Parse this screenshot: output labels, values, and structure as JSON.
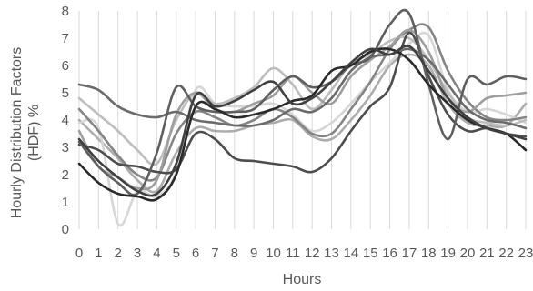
{
  "chart_data": {
    "type": "line",
    "xlabel": "Hours",
    "ylabel": "Hourly Distribution Factors (HDF) %",
    "ylabel_lines": [
      "Hourly Distribution Factors",
      "(HDF) %"
    ],
    "x": [
      0,
      1,
      2,
      3,
      4,
      5,
      6,
      7,
      8,
      9,
      10,
      11,
      12,
      13,
      14,
      15,
      16,
      17,
      18,
      19,
      20,
      21,
      22,
      23
    ],
    "x_tick_labels": [
      "0",
      "1",
      "2",
      "3",
      "4",
      "5",
      "6",
      "7",
      "8",
      "9",
      "10",
      "11",
      "12",
      "13",
      "14",
      "15",
      "16",
      "17",
      "18",
      "19",
      "20",
      "21",
      "22",
      "23"
    ],
    "ylim": [
      0,
      8
    ],
    "y_ticks": [
      0,
      1,
      2,
      3,
      4,
      5,
      6,
      7,
      8
    ],
    "grid": "vertical",
    "legend": "none",
    "series": [
      {
        "color": "#404040",
        "values": [
          3.3,
          2.5,
          1.9,
          1.4,
          1.3,
          2.4,
          4.9,
          4.5,
          4.7,
          5.1,
          5.4,
          4.6,
          4.8,
          5.4,
          6.1,
          6.6,
          6.4,
          6.7,
          5.8,
          4.8,
          4.1,
          3.7,
          3.5,
          3.3
        ]
      },
      {
        "color": "#2a2a2a",
        "values": [
          2.4,
          1.7,
          1.3,
          1.2,
          1.1,
          2.0,
          4.5,
          4.4,
          4.1,
          4.2,
          4.4,
          4.7,
          4.9,
          5.8,
          6.0,
          6.5,
          6.6,
          6.2,
          5.3,
          4.6,
          4.0,
          3.7,
          3.5,
          2.9
        ]
      },
      {
        "color": "#5f5f5f",
        "values": [
          3.2,
          2.3,
          1.7,
          1.3,
          2.8,
          5.2,
          4.5,
          4.3,
          4.3,
          4.4,
          5.1,
          5.6,
          5.2,
          5.4,
          6.0,
          6.3,
          7.5,
          7.9,
          5.3,
          3.3,
          5.5,
          5.3,
          5.6,
          5.5
        ]
      },
      {
        "color": "#6b6b6b",
        "values": [
          5.3,
          5.1,
          4.5,
          4.2,
          4.1,
          4.3,
          4.0,
          3.9,
          3.8,
          3.8,
          4.0,
          4.4,
          4.3,
          4.8,
          5.8,
          6.3,
          6.4,
          6.6,
          6.2,
          5.3,
          4.4,
          4.0,
          3.9,
          3.7
        ]
      },
      {
        "color": "#4d4d4d",
        "values": [
          3.1,
          2.9,
          2.4,
          2.3,
          2.1,
          2.2,
          3.5,
          3.3,
          2.6,
          2.5,
          2.4,
          2.3,
          2.1,
          2.6,
          3.6,
          4.5,
          5.2,
          7.2,
          5.6,
          4.2,
          3.6,
          3.7,
          3.5,
          3.4
        ]
      },
      {
        "color": "#9e9e9e",
        "values": [
          3.6,
          2.3,
          1.9,
          1.5,
          1.8,
          4.2,
          5.0,
          4.4,
          4.3,
          4.6,
          4.9,
          5.6,
          5.0,
          4.6,
          5.6,
          6.2,
          6.7,
          7.3,
          6.5,
          4.8,
          4.3,
          4.8,
          4.9,
          5.0
        ]
      },
      {
        "color": "#bdbdbd",
        "values": [
          4.8,
          4.2,
          3.6,
          2.9,
          2.4,
          4.0,
          5.0,
          4.6,
          4.8,
          5.2,
          5.9,
          5.3,
          4.4,
          5.1,
          6.1,
          6.4,
          6.9,
          7.0,
          6.2,
          5.0,
          4.1,
          3.9,
          3.8,
          4.0
        ]
      },
      {
        "color": "#858585",
        "values": [
          4.4,
          3.6,
          2.7,
          2.0,
          1.9,
          3.5,
          4.3,
          4.1,
          3.8,
          4.0,
          4.4,
          4.1,
          3.5,
          3.5,
          4.4,
          5.4,
          6.6,
          7.3,
          7.4,
          5.8,
          4.7,
          4.1,
          4.0,
          4.1
        ]
      },
      {
        "color": "#d6d6d6",
        "values": [
          3.9,
          3.7,
          0.2,
          1.4,
          1.2,
          2.1,
          5.1,
          4.6,
          4.5,
          4.5,
          4.6,
          4.2,
          3.6,
          3.9,
          4.6,
          5.4,
          6.1,
          6.8,
          7.1,
          5.1,
          4.3,
          4.4,
          4.2,
          3.9
        ]
      },
      {
        "color": "#adadad",
        "values": [
          4.0,
          3.3,
          2.6,
          1.8,
          1.4,
          2.8,
          3.7,
          3.6,
          3.6,
          3.8,
          3.9,
          4.0,
          3.4,
          3.3,
          4.0,
          4.9,
          6.0,
          6.4,
          6.0,
          4.6,
          3.9,
          3.8,
          3.8,
          4.6
        ]
      }
    ]
  }
}
